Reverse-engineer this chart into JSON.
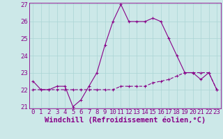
{
  "xlabel": "Windchill (Refroidissement éolien,°C)",
  "ylabel": "",
  "background_color": "#cce8e8",
  "line_color": "#880088",
  "ylim": [
    21,
    27
  ],
  "xlim": [
    -0.5,
    23.5
  ],
  "yticks": [
    21,
    22,
    23,
    24,
    25,
    26,
    27
  ],
  "xticks": [
    0,
    1,
    2,
    3,
    4,
    5,
    6,
    7,
    8,
    9,
    10,
    11,
    12,
    13,
    14,
    15,
    16,
    17,
    18,
    19,
    20,
    21,
    22,
    23
  ],
  "series1_x": [
    0,
    1,
    2,
    3,
    4,
    5,
    6,
    7,
    8,
    9,
    10,
    11,
    12,
    13,
    14,
    15,
    16,
    17,
    18,
    19,
    20,
    21,
    22,
    23
  ],
  "series1_y": [
    22.5,
    22.0,
    22.0,
    22.2,
    22.2,
    21.0,
    21.4,
    22.2,
    23.0,
    24.6,
    26.0,
    27.0,
    26.0,
    26.0,
    26.0,
    26.2,
    26.0,
    25.0,
    24.0,
    23.0,
    23.0,
    22.6,
    23.0,
    22.0
  ],
  "series2_x": [
    0,
    1,
    2,
    3,
    4,
    5,
    6,
    7,
    8,
    9,
    10,
    11,
    12,
    13,
    14,
    15,
    16,
    17,
    18,
    19,
    20,
    21,
    22,
    23
  ],
  "series2_y": [
    22.0,
    22.0,
    22.0,
    22.0,
    22.0,
    22.0,
    22.0,
    22.0,
    22.0,
    22.0,
    22.0,
    22.2,
    22.2,
    22.2,
    22.2,
    22.4,
    22.5,
    22.6,
    22.8,
    23.0,
    23.0,
    23.0,
    23.0,
    22.0
  ],
  "grid_color": "#aad4d4",
  "tick_label_fontsize": 6.5,
  "xlabel_fontsize": 7.5
}
